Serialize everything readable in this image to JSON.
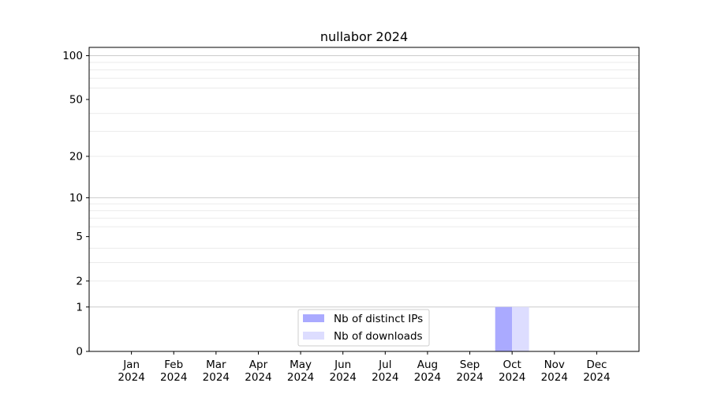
{
  "chart_data": {
    "type": "bar",
    "title": "nullabor 2024",
    "xlabel": "",
    "ylabel": "",
    "y_scale": "log(1+y)",
    "ylim": [
      0,
      114
    ],
    "yticks": [
      0,
      1,
      2,
      5,
      10,
      20,
      50,
      100
    ],
    "ytick_labels": [
      "0",
      "1",
      "2",
      "5",
      "10",
      "20",
      "50",
      "100"
    ],
    "grid": "horizontal, major at 1/10/100, minor at 2-9 and 20-90",
    "categories": [
      "Jan\n2024",
      "Feb\n2024",
      "Mar\n2024",
      "Apr\n2024",
      "May\n2024",
      "Jun\n2024",
      "Jul\n2024",
      "Aug\n2024",
      "Sep\n2024",
      "Oct\n2024",
      "Nov\n2024",
      "Dec\n2024"
    ],
    "series": [
      {
        "name": "Nb of distinct IPs",
        "color": "#aaaaff",
        "values": [
          0,
          0,
          0,
          0,
          0,
          0,
          0,
          0,
          0,
          1,
          0,
          0
        ]
      },
      {
        "name": "Nb of downloads",
        "color": "#ddddff",
        "values": [
          0,
          0,
          0,
          0,
          0,
          0,
          0,
          0,
          0,
          1,
          0,
          0
        ]
      }
    ],
    "legend_placement": "lower center"
  }
}
